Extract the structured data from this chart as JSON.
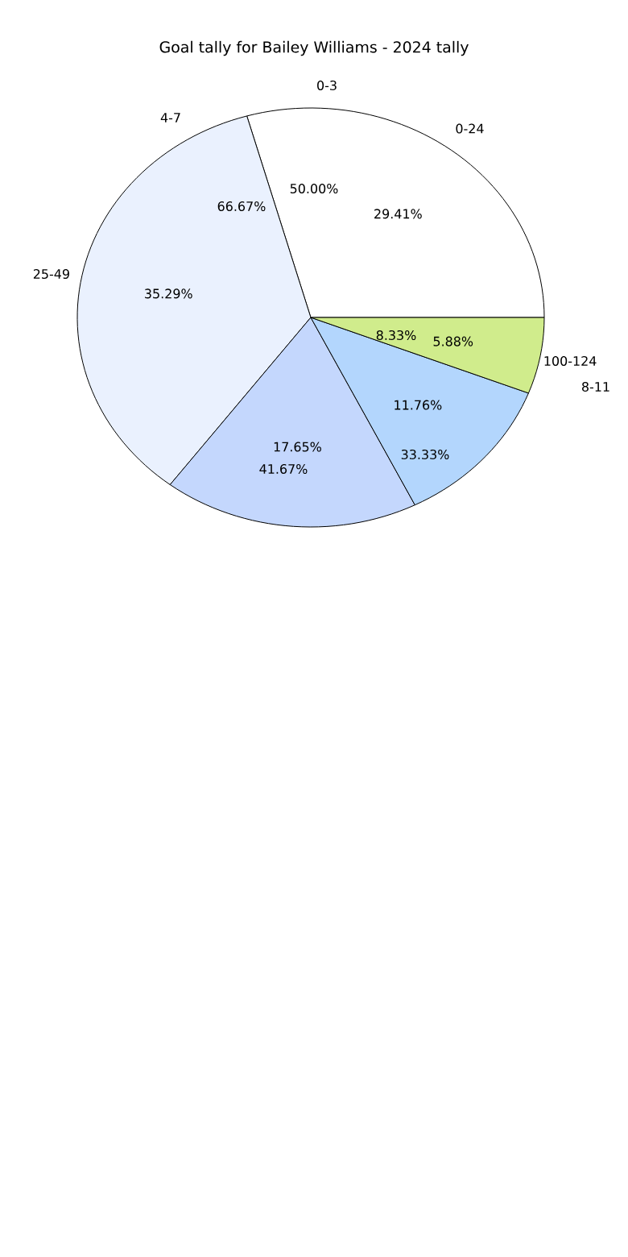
{
  "chart_data": {
    "type": "pie",
    "title": "Goal tally for Bailey Williams - 2024 tally",
    "categories": [
      "0-24",
      "25-49",
      null,
      null,
      "100-124"
    ],
    "values": [
      29.41,
      35.29,
      17.65,
      11.76,
      5.88
    ],
    "value_labels": [
      "29.41%",
      "35.29%",
      "17.65%",
      "11.76%",
      "5.88%"
    ],
    "colors": [
      "#ffffff",
      "#eaf1fe",
      "#c4d7fd",
      "#b3d6fd",
      "#d0ec8c"
    ],
    "annotations": [
      "0-3",
      "4-7",
      "8-11",
      "50.00%",
      "66.67%",
      "8.33%",
      "33.33%",
      "41.67%"
    ]
  }
}
